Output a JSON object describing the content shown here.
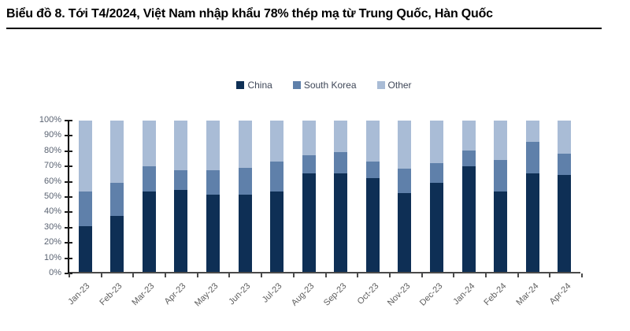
{
  "title": "Biểu đồ 8. Tới T4/2024, Việt Nam nhập khẩu 78% thép mạ từ Trung Quốc, Hàn Quốc",
  "colors": {
    "china": "#0e2f55",
    "south_korea": "#5f80aa",
    "other": "#a9bcd6",
    "axis_line": "#1a1a1a",
    "tick_label": "#5a6372",
    "x_label": "#5f5f5f",
    "legend_text": "#3f4758",
    "title_text": "#000000"
  },
  "chart_data": {
    "type": "bar",
    "stacked": true,
    "percent_stacked": true,
    "title": "Biểu đồ 8. Tới T4/2024, Việt Nam nhập khẩu 78% thép mạ từ Trung Quốc, Hàn Quốc",
    "legend_position": "top-center",
    "grid": false,
    "ylim": [
      0,
      100
    ],
    "ytick_labels": [
      "0%",
      "10%",
      "20%",
      "30%",
      "40%",
      "50%",
      "60%",
      "70%",
      "80%",
      "90%",
      "100%"
    ],
    "categories": [
      "Jan-23",
      "Feb-23",
      "Mar-23",
      "Apr-23",
      "May-23",
      "Jun-23",
      "Jul-23",
      "Aug-23",
      "Sep-23",
      "Oct-23",
      "Nov-23",
      "Dec-23",
      "Jan-24",
      "Feb-24",
      "Mar-24",
      "Apr-24"
    ],
    "series": [
      {
        "name": "China",
        "color": "#0e2f55",
        "values": [
          30,
          37,
          53,
          54,
          51,
          51,
          53,
          65,
          65,
          62,
          52,
          59,
          70,
          53,
          65,
          64
        ]
      },
      {
        "name": "South Korea",
        "color": "#5f80aa",
        "values": [
          23,
          22,
          17,
          13,
          16,
          18,
          20,
          12,
          14,
          11,
          16,
          13,
          10,
          21,
          21,
          14
        ]
      },
      {
        "name": "Other",
        "color": "#a9bcd6",
        "values": [
          47,
          41,
          30,
          33,
          33,
          31,
          27,
          23,
          21,
          27,
          32,
          28,
          20,
          26,
          14,
          22
        ]
      }
    ]
  }
}
